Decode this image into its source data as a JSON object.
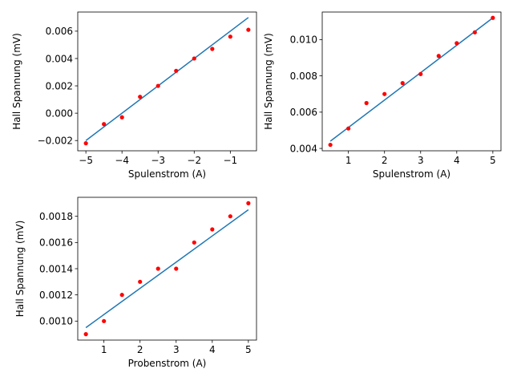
{
  "chart_data": [
    {
      "type": "scatter",
      "xlabel": "Spulenstrom (A)",
      "ylabel": "Hall Spannung (mV)",
      "xlim": [
        -5.225,
        -0.275
      ],
      "ylim": [
        -0.00275,
        0.0074
      ],
      "xticks": [
        -5,
        -4,
        -3,
        -2,
        -1
      ],
      "xtick_labels": [
        "−5",
        "−4",
        "−3",
        "−2",
        "−1"
      ],
      "yticks": [
        -0.002,
        0,
        0.002,
        0.004,
        0.006
      ],
      "ytick_labels": [
        "−0.002",
        "0.000",
        "0.002",
        "0.004",
        "0.006"
      ],
      "series": [
        {
          "kind": "points",
          "color": "#ff0000",
          "x": [
            -5.0,
            -4.5,
            -4.0,
            -3.5,
            -3.0,
            -2.5,
            -2.0,
            -1.5,
            -1.0,
            -0.5
          ],
          "y": [
            -0.0022,
            -0.0008,
            -0.0003,
            0.0012,
            0.002,
            0.0031,
            0.004,
            0.0047,
            0.0056,
            0.0061
          ]
        },
        {
          "kind": "line",
          "color": "#1f77b4",
          "x": [
            -5.0,
            -0.5
          ],
          "y": [
            -0.002,
            0.007
          ]
        }
      ]
    },
    {
      "type": "scatter",
      "xlabel": "Spulenstrom (A)",
      "ylabel": "Hall Spannung (mV)",
      "xlim": [
        0.275,
        5.225
      ],
      "ylim": [
        0.00387,
        0.01152
      ],
      "xticks": [
        1,
        2,
        3,
        4,
        5
      ],
      "xtick_labels": [
        "1",
        "2",
        "3",
        "4",
        "5"
      ],
      "yticks": [
        0.004,
        0.006,
        0.008,
        0.01
      ],
      "ytick_labels": [
        "0.004",
        "0.006",
        "0.008",
        "0.010"
      ],
      "series": [
        {
          "kind": "points",
          "color": "#ff0000",
          "x": [
            0.5,
            1.0,
            1.5,
            2.0,
            2.5,
            3.0,
            3.5,
            4.0,
            4.5,
            5.0
          ],
          "y": [
            0.0042,
            0.0051,
            0.0065,
            0.007,
            0.0076,
            0.0081,
            0.0091,
            0.0098,
            0.0104,
            0.0112
          ]
        },
        {
          "kind": "line",
          "color": "#1f77b4",
          "x": [
            0.5,
            5.0
          ],
          "y": [
            0.0044,
            0.0112
          ]
        }
      ]
    },
    {
      "type": "scatter",
      "xlabel": "Probenstrom (A)",
      "ylabel": "Hall Spannung (mV)",
      "xlim": [
        0.275,
        5.225
      ],
      "ylim": [
        0.000855,
        0.001945
      ],
      "xticks": [
        1,
        2,
        3,
        4,
        5
      ],
      "xtick_labels": [
        "1",
        "2",
        "3",
        "4",
        "5"
      ],
      "yticks": [
        0.001,
        0.0012,
        0.0014,
        0.0016,
        0.0018
      ],
      "ytick_labels": [
        "0.0010",
        "0.0012",
        "0.0014",
        "0.0016",
        "0.0018"
      ],
      "series": [
        {
          "kind": "points",
          "color": "#ff0000",
          "x": [
            0.5,
            1.0,
            1.5,
            2.0,
            2.5,
            3.0,
            3.5,
            4.0,
            4.5,
            5.0
          ],
          "y": [
            0.0009,
            0.001,
            0.0012,
            0.0013,
            0.0014,
            0.0014,
            0.0016,
            0.0017,
            0.0018,
            0.0019
          ]
        },
        {
          "kind": "line",
          "color": "#1f77b4",
          "x": [
            0.5,
            5.0
          ],
          "y": [
            0.00095,
            0.00185
          ]
        }
      ]
    }
  ]
}
